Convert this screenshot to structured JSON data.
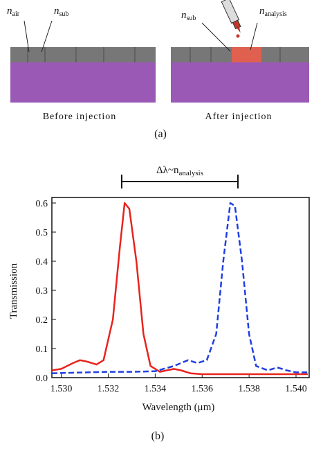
{
  "diagram": {
    "labels": [
      {
        "symbol": "n",
        "subscript": "air"
      },
      {
        "symbol": "n",
        "subscript": "sub"
      },
      {
        "symbol": "n",
        "subscript": "sub"
      },
      {
        "symbol": "n",
        "subscript": "analysis"
      }
    ],
    "captions": [
      "Before injection",
      "After injection"
    ],
    "panel": "(a)"
  },
  "chart_data": {
    "type": "line",
    "annotation": {
      "text": "Δλ~n",
      "subscript": "analysis"
    },
    "x_label": "Wavelength (μm)",
    "y_label": "Transmission",
    "panel": "(b)",
    "xlim": [
      1.5296,
      1.54056
    ],
    "ylim": [
      0,
      0.619
    ],
    "xticks": [
      {
        "value": 1.53,
        "label": "1.530"
      },
      {
        "value": 1.532,
        "label": "1.532"
      },
      {
        "value": 1.534,
        "label": "1.534"
      },
      {
        "value": 1.536,
        "label": "1.536"
      },
      {
        "value": 1.538,
        "label": "1.538"
      },
      {
        "value": 1.54,
        "label": "1.540"
      }
    ],
    "yticks": [
      {
        "value": 0,
        "label": "0.0"
      },
      0.1,
      0.2,
      0.3,
      0.4,
      0.5,
      0.6
    ],
    "series": [
      {
        "color": "#e8231c",
        "dash": false,
        "x": [
          1.5296,
          1.53,
          1.5305,
          1.5308,
          1.5311,
          1.5315,
          1.5318,
          1.5322,
          1.5325,
          1.5327,
          1.5329,
          1.5332,
          1.5335,
          1.5338,
          1.5342,
          1.5345,
          1.5348,
          1.5351,
          1.5355,
          1.536,
          1.538,
          1.5405
        ],
        "values": [
          0.025,
          0.03,
          0.05,
          0.06,
          0.055,
          0.045,
          0.06,
          0.2,
          0.45,
          0.6,
          0.58,
          0.4,
          0.15,
          0.04,
          0.02,
          0.025,
          0.03,
          0.025,
          0.015,
          0.012,
          0.012,
          0.012
        ]
      },
      {
        "color": "#1f3fe0",
        "dash": true,
        "x": [
          1.5296,
          1.532,
          1.533,
          1.534,
          1.5348,
          1.5354,
          1.5358,
          1.5362,
          1.5366,
          1.5369,
          1.5372,
          1.5374,
          1.5377,
          1.538,
          1.5383,
          1.5388,
          1.5392,
          1.5396,
          1.54,
          1.5405
        ],
        "values": [
          0.015,
          0.02,
          0.02,
          0.022,
          0.04,
          0.06,
          0.05,
          0.06,
          0.15,
          0.4,
          0.6,
          0.59,
          0.4,
          0.15,
          0.04,
          0.025,
          0.035,
          0.025,
          0.018,
          0.018
        ]
      }
    ]
  }
}
